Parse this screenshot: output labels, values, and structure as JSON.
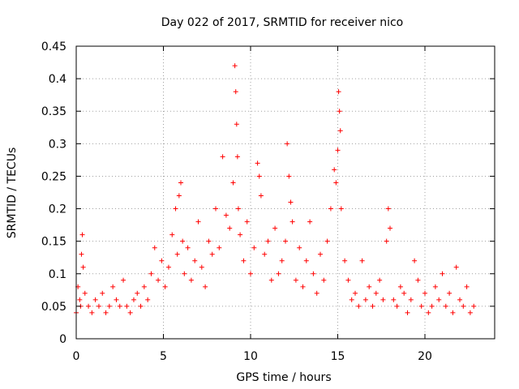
{
  "chart_data": {
    "type": "scatter",
    "title": "Day 022 of 2017, SRMTID for receiver nico",
    "xlabel": "GPS time / hours",
    "ylabel": "SRMTID / TECUs",
    "xlim": [
      0,
      24.0
    ],
    "ylim": [
      0,
      0.45
    ],
    "xticks": [
      0,
      5,
      10,
      15,
      20
    ],
    "xtick_labels": [
      "0",
      "5",
      "10",
      "15",
      "20"
    ],
    "yticks": [
      0,
      0.05,
      0.1,
      0.15,
      0.2,
      0.25,
      0.3,
      0.35,
      0.4,
      0.45
    ],
    "ytick_labels": [
      "0",
      "0.05",
      "0.1",
      "0.15",
      "0.2",
      "0.25",
      "0.3",
      "0.35",
      "0.4",
      "0.45"
    ],
    "grid": true,
    "marker": "plus",
    "color": "#ff0000",
    "series": [
      {
        "name": "SRMTID",
        "x": [
          0.0,
          0.1,
          0.2,
          0.25,
          0.3,
          0.35,
          0.4,
          0.5,
          0.7,
          0.9,
          1.1,
          1.3,
          1.5,
          1.7,
          1.9,
          2.1,
          2.3,
          2.5,
          2.7,
          2.9,
          3.1,
          3.3,
          3.5,
          3.7,
          3.9,
          4.1,
          4.3,
          4.5,
          4.7,
          4.9,
          5.1,
          5.3,
          5.5,
          5.7,
          5.8,
          5.9,
          6.0,
          6.1,
          6.2,
          6.4,
          6.6,
          6.8,
          7.0,
          7.2,
          7.4,
          7.6,
          7.8,
          8.0,
          8.2,
          8.4,
          8.6,
          8.8,
          9.0,
          9.1,
          9.15,
          9.2,
          9.25,
          9.3,
          9.4,
          9.6,
          9.8,
          10.0,
          10.2,
          10.4,
          10.5,
          10.6,
          10.8,
          11.0,
          11.2,
          11.4,
          11.6,
          11.8,
          12.0,
          12.1,
          12.2,
          12.3,
          12.4,
          12.6,
          12.8,
          13.0,
          13.2,
          13.4,
          13.6,
          13.8,
          14.0,
          14.2,
          14.4,
          14.6,
          14.8,
          14.9,
          15.0,
          15.05,
          15.1,
          15.15,
          15.2,
          15.4,
          15.6,
          15.8,
          16.0,
          16.2,
          16.4,
          16.6,
          16.8,
          17.0,
          17.2,
          17.4,
          17.6,
          17.8,
          17.9,
          18.0,
          18.2,
          18.4,
          18.6,
          18.8,
          19.0,
          19.2,
          19.4,
          19.6,
          19.8,
          20.0,
          20.2,
          20.4,
          20.6,
          20.8,
          21.0,
          21.2,
          21.4,
          21.6,
          21.8,
          22.0,
          22.2,
          22.4,
          22.6,
          22.8
        ],
        "y": [
          0.04,
          0.08,
          0.06,
          0.05,
          0.13,
          0.16,
          0.11,
          0.07,
          0.05,
          0.04,
          0.06,
          0.05,
          0.07,
          0.04,
          0.05,
          0.08,
          0.06,
          0.05,
          0.09,
          0.05,
          0.04,
          0.06,
          0.07,
          0.05,
          0.08,
          0.06,
          0.1,
          0.14,
          0.09,
          0.12,
          0.08,
          0.11,
          0.16,
          0.2,
          0.13,
          0.22,
          0.24,
          0.15,
          0.1,
          0.14,
          0.09,
          0.12,
          0.18,
          0.11,
          0.08,
          0.15,
          0.13,
          0.2,
          0.14,
          0.28,
          0.19,
          0.17,
          0.24,
          0.42,
          0.38,
          0.33,
          0.28,
          0.2,
          0.16,
          0.12,
          0.18,
          0.1,
          0.14,
          0.27,
          0.25,
          0.22,
          0.13,
          0.15,
          0.09,
          0.17,
          0.1,
          0.12,
          0.15,
          0.3,
          0.25,
          0.21,
          0.18,
          0.09,
          0.14,
          0.08,
          0.12,
          0.18,
          0.1,
          0.07,
          0.13,
          0.09,
          0.15,
          0.2,
          0.26,
          0.24,
          0.29,
          0.38,
          0.35,
          0.32,
          0.2,
          0.12,
          0.09,
          0.06,
          0.07,
          0.05,
          0.12,
          0.06,
          0.08,
          0.05,
          0.07,
          0.09,
          0.06,
          0.15,
          0.2,
          0.17,
          0.06,
          0.05,
          0.08,
          0.07,
          0.04,
          0.06,
          0.12,
          0.09,
          0.05,
          0.07,
          0.04,
          0.05,
          0.08,
          0.06,
          0.1,
          0.05,
          0.07,
          0.04,
          0.11,
          0.06,
          0.05,
          0.08,
          0.04,
          0.05
        ]
      }
    ]
  }
}
